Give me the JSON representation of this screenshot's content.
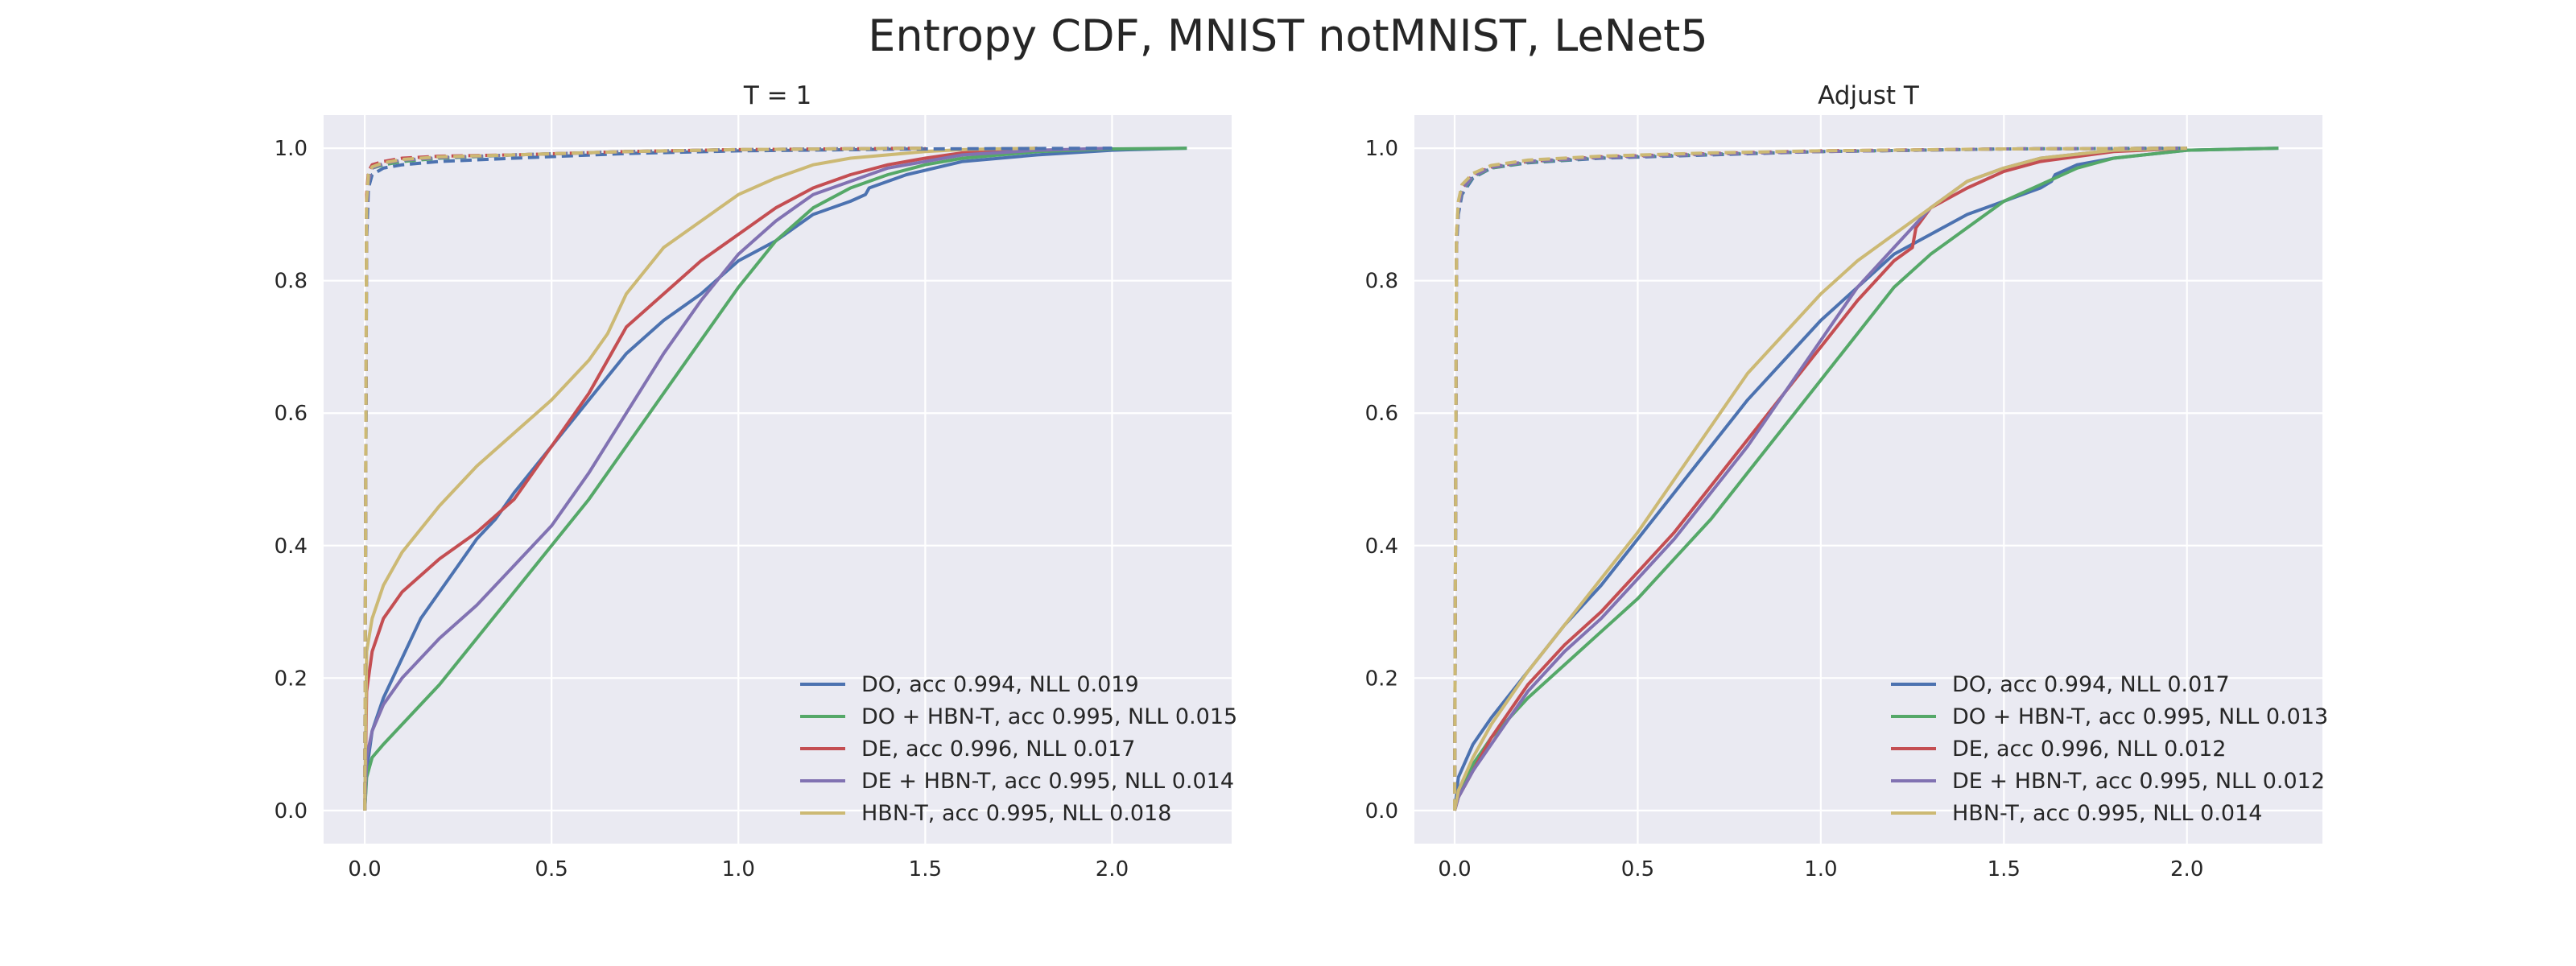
{
  "figure": {
    "title": "Entropy CDF, MNIST notMNIST, LeNet5"
  },
  "chart_data": [
    {
      "type": "line",
      "title": "T = 1",
      "xlabel": "",
      "ylabel": "",
      "xlim": [
        -0.11,
        2.32
      ],
      "ylim": [
        -0.05,
        1.05
      ],
      "xticks": [
        "0.0",
        "0.5",
        "1.0",
        "1.5",
        "2.0"
      ],
      "yticks": [
        "0.0",
        "0.2",
        "0.4",
        "0.6",
        "0.8",
        "1.0"
      ],
      "grid": true,
      "legend_position": "lower-right",
      "series": [
        {
          "name": "DO, acc 0.994, NLL 0.019",
          "color": "#4c72b0",
          "style": "solid",
          "x": [
            0,
            0.005,
            0.02,
            0.05,
            0.1,
            0.15,
            0.2,
            0.25,
            0.3,
            0.35,
            0.4,
            0.5,
            0.6,
            0.7,
            0.8,
            0.9,
            1.0,
            1.1,
            1.2,
            1.3,
            1.34,
            1.35,
            1.45,
            1.6,
            1.8,
            2.0,
            2.2
          ],
          "y": [
            0,
            0.06,
            0.12,
            0.17,
            0.23,
            0.29,
            0.33,
            0.37,
            0.41,
            0.44,
            0.48,
            0.55,
            0.62,
            0.69,
            0.74,
            0.78,
            0.83,
            0.86,
            0.9,
            0.92,
            0.93,
            0.94,
            0.96,
            0.98,
            0.99,
            0.997,
            1.0
          ]
        },
        {
          "name": "DO + HBN-T, acc 0.995, NLL 0.015",
          "color": "#55a868",
          "style": "solid",
          "x": [
            0,
            0.005,
            0.02,
            0.05,
            0.1,
            0.2,
            0.3,
            0.4,
            0.5,
            0.6,
            0.7,
            0.8,
            0.9,
            1.0,
            1.1,
            1.2,
            1.3,
            1.4,
            1.5,
            1.6,
            1.8,
            2.0,
            2.2
          ],
          "y": [
            0,
            0.05,
            0.08,
            0.1,
            0.13,
            0.19,
            0.26,
            0.33,
            0.4,
            0.47,
            0.55,
            0.63,
            0.71,
            0.79,
            0.86,
            0.91,
            0.94,
            0.96,
            0.975,
            0.985,
            0.995,
            0.999,
            1.0
          ]
        },
        {
          "name": "DE, acc 0.996, NLL 0.017",
          "color": "#c44e52",
          "style": "solid",
          "x": [
            0,
            0.005,
            0.02,
            0.05,
            0.1,
            0.2,
            0.3,
            0.4,
            0.5,
            0.6,
            0.7,
            0.8,
            0.9,
            1.0,
            1.1,
            1.2,
            1.3,
            1.4,
            1.5,
            1.6,
            1.8
          ],
          "y": [
            0,
            0.18,
            0.24,
            0.29,
            0.33,
            0.38,
            0.42,
            0.47,
            0.55,
            0.63,
            0.73,
            0.78,
            0.83,
            0.87,
            0.91,
            0.94,
            0.96,
            0.975,
            0.985,
            0.993,
            1.0
          ]
        },
        {
          "name": "DE + HBN-T, acc 0.995, NLL 0.014",
          "color": "#8172b2",
          "style": "solid",
          "x": [
            0,
            0.005,
            0.02,
            0.05,
            0.1,
            0.2,
            0.3,
            0.4,
            0.5,
            0.6,
            0.7,
            0.8,
            0.9,
            1.0,
            1.1,
            1.2,
            1.3,
            1.4,
            1.5,
            1.6,
            1.8,
            2.0
          ],
          "y": [
            0,
            0.08,
            0.12,
            0.16,
            0.2,
            0.26,
            0.31,
            0.37,
            0.43,
            0.51,
            0.6,
            0.69,
            0.77,
            0.84,
            0.89,
            0.93,
            0.95,
            0.97,
            0.98,
            0.99,
            0.997,
            1.0
          ]
        },
        {
          "name": "HBN-T, acc 0.995, NLL 0.018",
          "color": "#ccb974",
          "style": "solid",
          "x": [
            0,
            0.005,
            0.02,
            0.05,
            0.1,
            0.2,
            0.3,
            0.4,
            0.5,
            0.6,
            0.65,
            0.7,
            0.8,
            0.9,
            1.0,
            1.1,
            1.2,
            1.3,
            1.4,
            1.5,
            1.6,
            1.8
          ],
          "y": [
            0,
            0.24,
            0.29,
            0.34,
            0.39,
            0.46,
            0.52,
            0.57,
            0.62,
            0.68,
            0.72,
            0.78,
            0.85,
            0.89,
            0.93,
            0.955,
            0.975,
            0.985,
            0.99,
            0.995,
            0.998,
            1.0
          ]
        },
        {
          "name": "",
          "color": "#4c72b0",
          "style": "dashed",
          "x": [
            0,
            0.005,
            0.01,
            0.02,
            0.05,
            0.1,
            0.2,
            0.4,
            0.7,
            1.0,
            1.5,
            2.0
          ],
          "y": [
            0,
            0.86,
            0.94,
            0.96,
            0.97,
            0.975,
            0.98,
            0.985,
            0.992,
            0.996,
            0.999,
            1.0
          ]
        },
        {
          "name": "",
          "color": "#55a868",
          "style": "dashed",
          "x": [
            0,
            0.005,
            0.01,
            0.02,
            0.05,
            0.1,
            0.2,
            0.4,
            0.7,
            1.0,
            1.5
          ],
          "y": [
            0,
            0.9,
            0.95,
            0.97,
            0.975,
            0.98,
            0.985,
            0.99,
            0.995,
            0.998,
            1.0
          ]
        },
        {
          "name": "",
          "color": "#c44e52",
          "style": "dashed",
          "x": [
            0,
            0.005,
            0.01,
            0.02,
            0.05,
            0.1,
            0.2,
            0.4,
            0.7,
            1.0,
            1.5
          ],
          "y": [
            0,
            0.93,
            0.965,
            0.975,
            0.98,
            0.985,
            0.988,
            0.99,
            0.995,
            0.998,
            1.0
          ]
        },
        {
          "name": "",
          "color": "#8172b2",
          "style": "dashed",
          "x": [
            0,
            0.005,
            0.01,
            0.02,
            0.05,
            0.1,
            0.2,
            0.4,
            0.7,
            1.0,
            1.5
          ],
          "y": [
            0,
            0.9,
            0.95,
            0.97,
            0.977,
            0.982,
            0.986,
            0.99,
            0.995,
            0.998,
            1.0
          ]
        },
        {
          "name": "",
          "color": "#ccb974",
          "style": "dashed",
          "x": [
            0,
            0.005,
            0.01,
            0.02,
            0.05,
            0.1,
            0.2,
            0.4,
            0.7,
            1.0,
            1.5
          ],
          "y": [
            0,
            0.92,
            0.96,
            0.972,
            0.978,
            0.983,
            0.987,
            0.99,
            0.995,
            0.998,
            1.0
          ]
        }
      ]
    },
    {
      "type": "line",
      "title": "Adjust T",
      "xlabel": "",
      "ylabel": "",
      "xlim": [
        -0.11,
        2.37
      ],
      "ylim": [
        -0.05,
        1.05
      ],
      "xticks": [
        "0.0",
        "0.5",
        "1.0",
        "1.5",
        "2.0"
      ],
      "yticks": [
        "0.0",
        "0.2",
        "0.4",
        "0.6",
        "0.8",
        "1.0"
      ],
      "grid": true,
      "legend_position": "lower-right",
      "series": [
        {
          "name": "DO, acc 0.994, NLL 0.017",
          "color": "#4c72b0",
          "style": "solid",
          "x": [
            0,
            0.01,
            0.05,
            0.1,
            0.2,
            0.3,
            0.4,
            0.5,
            0.6,
            0.7,
            0.8,
            0.9,
            1.0,
            1.1,
            1.2,
            1.3,
            1.4,
            1.5,
            1.6,
            1.63,
            1.64,
            1.7,
            1.8,
            2.0,
            2.25
          ],
          "y": [
            0,
            0.05,
            0.1,
            0.14,
            0.21,
            0.28,
            0.34,
            0.41,
            0.48,
            0.55,
            0.62,
            0.68,
            0.74,
            0.79,
            0.84,
            0.87,
            0.9,
            0.92,
            0.94,
            0.95,
            0.96,
            0.975,
            0.985,
            0.997,
            1.0
          ]
        },
        {
          "name": "DO + HBN-T, acc 0.995, NLL 0.013",
          "color": "#55a868",
          "style": "solid",
          "x": [
            0,
            0.01,
            0.05,
            0.1,
            0.2,
            0.3,
            0.4,
            0.5,
            0.6,
            0.7,
            0.8,
            0.9,
            1.0,
            1.1,
            1.2,
            1.3,
            1.4,
            1.5,
            1.6,
            1.7,
            1.8,
            2.0,
            2.25
          ],
          "y": [
            0,
            0.02,
            0.07,
            0.11,
            0.17,
            0.22,
            0.27,
            0.32,
            0.38,
            0.44,
            0.51,
            0.58,
            0.65,
            0.72,
            0.79,
            0.84,
            0.88,
            0.92,
            0.945,
            0.97,
            0.985,
            0.997,
            1.0
          ]
        },
        {
          "name": "DE, acc 0.996, NLL 0.012",
          "color": "#c44e52",
          "style": "solid",
          "x": [
            0,
            0.01,
            0.05,
            0.1,
            0.2,
            0.3,
            0.4,
            0.5,
            0.6,
            0.7,
            0.8,
            0.9,
            1.0,
            1.1,
            1.2,
            1.25,
            1.26,
            1.3,
            1.4,
            1.5,
            1.6,
            1.8,
            2.0
          ],
          "y": [
            0,
            0.02,
            0.06,
            0.11,
            0.19,
            0.25,
            0.3,
            0.36,
            0.42,
            0.49,
            0.56,
            0.63,
            0.7,
            0.77,
            0.83,
            0.85,
            0.88,
            0.91,
            0.94,
            0.965,
            0.98,
            0.995,
            1.0
          ]
        },
        {
          "name": "DE + HBN-T, acc 0.995, NLL 0.012",
          "color": "#8172b2",
          "style": "solid",
          "x": [
            0,
            0.01,
            0.05,
            0.1,
            0.2,
            0.3,
            0.4,
            0.5,
            0.6,
            0.7,
            0.8,
            0.9,
            1.0,
            1.1,
            1.2,
            1.3,
            1.4,
            1.5,
            1.6,
            1.8,
            2.0
          ],
          "y": [
            0,
            0.02,
            0.06,
            0.1,
            0.18,
            0.24,
            0.29,
            0.35,
            0.41,
            0.48,
            0.55,
            0.63,
            0.71,
            0.79,
            0.85,
            0.91,
            0.95,
            0.97,
            0.985,
            0.997,
            1.0
          ]
        },
        {
          "name": "HBN-T, acc 0.995, NLL 0.014",
          "color": "#ccb974",
          "style": "solid",
          "x": [
            0,
            0.01,
            0.05,
            0.1,
            0.2,
            0.3,
            0.4,
            0.5,
            0.6,
            0.7,
            0.8,
            0.9,
            1.0,
            1.1,
            1.2,
            1.3,
            1.4,
            1.5,
            1.6,
            1.8,
            2.0
          ],
          "y": [
            0,
            0.03,
            0.08,
            0.13,
            0.21,
            0.28,
            0.35,
            0.42,
            0.5,
            0.58,
            0.66,
            0.72,
            0.78,
            0.83,
            0.87,
            0.91,
            0.95,
            0.97,
            0.985,
            0.997,
            1.0
          ]
        },
        {
          "name": "",
          "color": "#4c72b0",
          "style": "dashed",
          "x": [
            0,
            0.005,
            0.01,
            0.02,
            0.05,
            0.1,
            0.2,
            0.4,
            0.7,
            1.0,
            1.5,
            2.0
          ],
          "y": [
            0,
            0.85,
            0.9,
            0.93,
            0.955,
            0.97,
            0.978,
            0.985,
            0.99,
            0.995,
            0.999,
            1.0
          ]
        },
        {
          "name": "",
          "color": "#55a868",
          "style": "dashed",
          "x": [
            0,
            0.005,
            0.01,
            0.02,
            0.05,
            0.1,
            0.2,
            0.4,
            0.7,
            1.0,
            1.5,
            2.0
          ],
          "y": [
            0,
            0.86,
            0.91,
            0.935,
            0.957,
            0.97,
            0.979,
            0.986,
            0.991,
            0.995,
            0.999,
            1.0
          ]
        },
        {
          "name": "",
          "color": "#c44e52",
          "style": "dashed",
          "x": [
            0,
            0.005,
            0.01,
            0.02,
            0.05,
            0.1,
            0.2,
            0.4,
            0.7,
            1.0,
            1.5,
            2.0
          ],
          "y": [
            0,
            0.87,
            0.915,
            0.94,
            0.96,
            0.972,
            0.98,
            0.987,
            0.992,
            0.996,
            0.999,
            1.0
          ]
        },
        {
          "name": "",
          "color": "#8172b2",
          "style": "dashed",
          "x": [
            0,
            0.005,
            0.01,
            0.02,
            0.05,
            0.1,
            0.2,
            0.4,
            0.7,
            1.0,
            1.5,
            2.0
          ],
          "y": [
            0,
            0.86,
            0.91,
            0.937,
            0.958,
            0.971,
            0.98,
            0.986,
            0.991,
            0.995,
            0.999,
            1.0
          ]
        },
        {
          "name": "",
          "color": "#ccb974",
          "style": "dashed",
          "x": [
            0,
            0.005,
            0.01,
            0.02,
            0.05,
            0.1,
            0.2,
            0.4,
            0.7,
            1.0,
            1.5,
            2.0
          ],
          "y": [
            0,
            0.87,
            0.92,
            0.945,
            0.962,
            0.974,
            0.982,
            0.988,
            0.993,
            0.996,
            0.999,
            1.0
          ]
        }
      ]
    }
  ]
}
